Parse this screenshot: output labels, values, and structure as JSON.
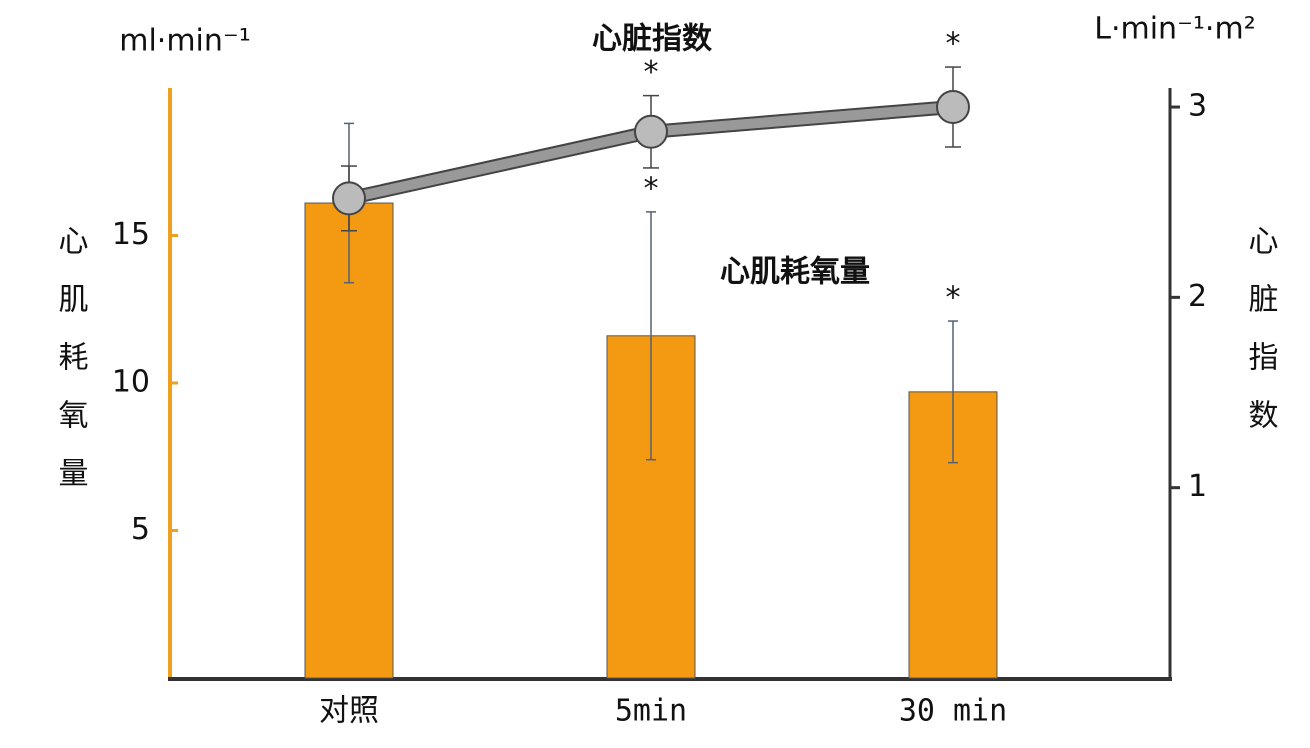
{
  "chart_data": {
    "type": "bar",
    "categories": [
      "对照",
      "5min",
      "30 min"
    ],
    "ylabel": "心肌耗氧量",
    "yunit": "ml·min⁻¹",
    "y2label": "心脏指数",
    "y2unit": "L·min⁻¹·m²",
    "ylim": [
      0,
      20
    ],
    "yticks": [
      5,
      10,
      15
    ],
    "y2lim": [
      0,
      3.1
    ],
    "y2ticks": [
      1,
      2,
      3
    ],
    "series": [
      {
        "name": "心肌耗氧量",
        "type": "bar",
        "color": "#f39a12",
        "values": [
          16.1,
          11.6,
          9.7
        ],
        "errors": [
          2.7,
          4.2,
          2.4
        ],
        "markers": [
          null,
          "*",
          "*"
        ]
      },
      {
        "name": "心脏指数",
        "type": "line",
        "axis": "y2",
        "color": "#999999",
        "values": [
          2.52,
          2.87,
          3.0
        ],
        "errors": [
          0.17,
          0.19,
          0.21
        ],
        "markers": [
          null,
          "*",
          "*"
        ]
      }
    ]
  }
}
